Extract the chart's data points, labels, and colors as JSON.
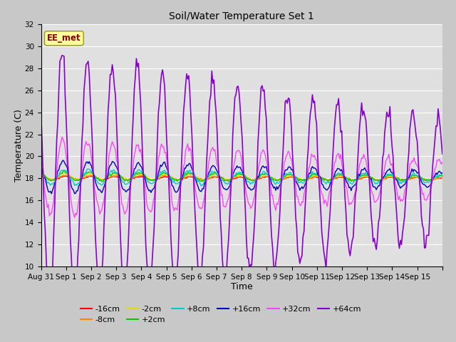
{
  "title": "Soil/Water Temperature Set 1",
  "xlabel": "Time",
  "ylabel": "Temperature (C)",
  "ylim": [
    10,
    32
  ],
  "yticks": [
    10,
    12,
    14,
    16,
    18,
    20,
    22,
    24,
    26,
    28,
    30,
    32
  ],
  "annotation": "EE_met",
  "fig_bg": "#c8c8c8",
  "plot_bg": "#e0e0e0",
  "series_order": [
    "-16cm",
    "-8cm",
    "-2cm",
    "+2cm",
    "+8cm",
    "+16cm",
    "+32cm",
    "+64cm"
  ],
  "series": {
    "-16cm": {
      "color": "#ff0000",
      "lw": 1.0
    },
    "-8cm": {
      "color": "#ff8800",
      "lw": 1.0
    },
    "-2cm": {
      "color": "#dddd00",
      "lw": 1.0
    },
    "+2cm": {
      "color": "#00cc00",
      "lw": 1.0
    },
    "+8cm": {
      "color": "#00cccc",
      "lw": 1.0
    },
    "+16cm": {
      "color": "#0000bb",
      "lw": 1.0
    },
    "+32cm": {
      "color": "#ff44ff",
      "lw": 1.0
    },
    "+64cm": {
      "color": "#8800cc",
      "lw": 1.2
    }
  },
  "xtick_labels": [
    "Aug 31",
    "Sep 1",
    "Sep 2",
    "Sep 3",
    "Sep 4",
    "Sep 5",
    "Sep 6",
    "Sep 7",
    "Sep 8",
    "Sep 9",
    "Sep 10",
    "Sep 11",
    "Sep 12",
    "Sep 13",
    "Sep 14",
    "Sep 15"
  ],
  "legend_row1": [
    "-16cm",
    "-8cm",
    "-2cm",
    "+2cm",
    "+8cm",
    "+16cm"
  ],
  "legend_row2": [
    "+32cm",
    "+64cm"
  ]
}
